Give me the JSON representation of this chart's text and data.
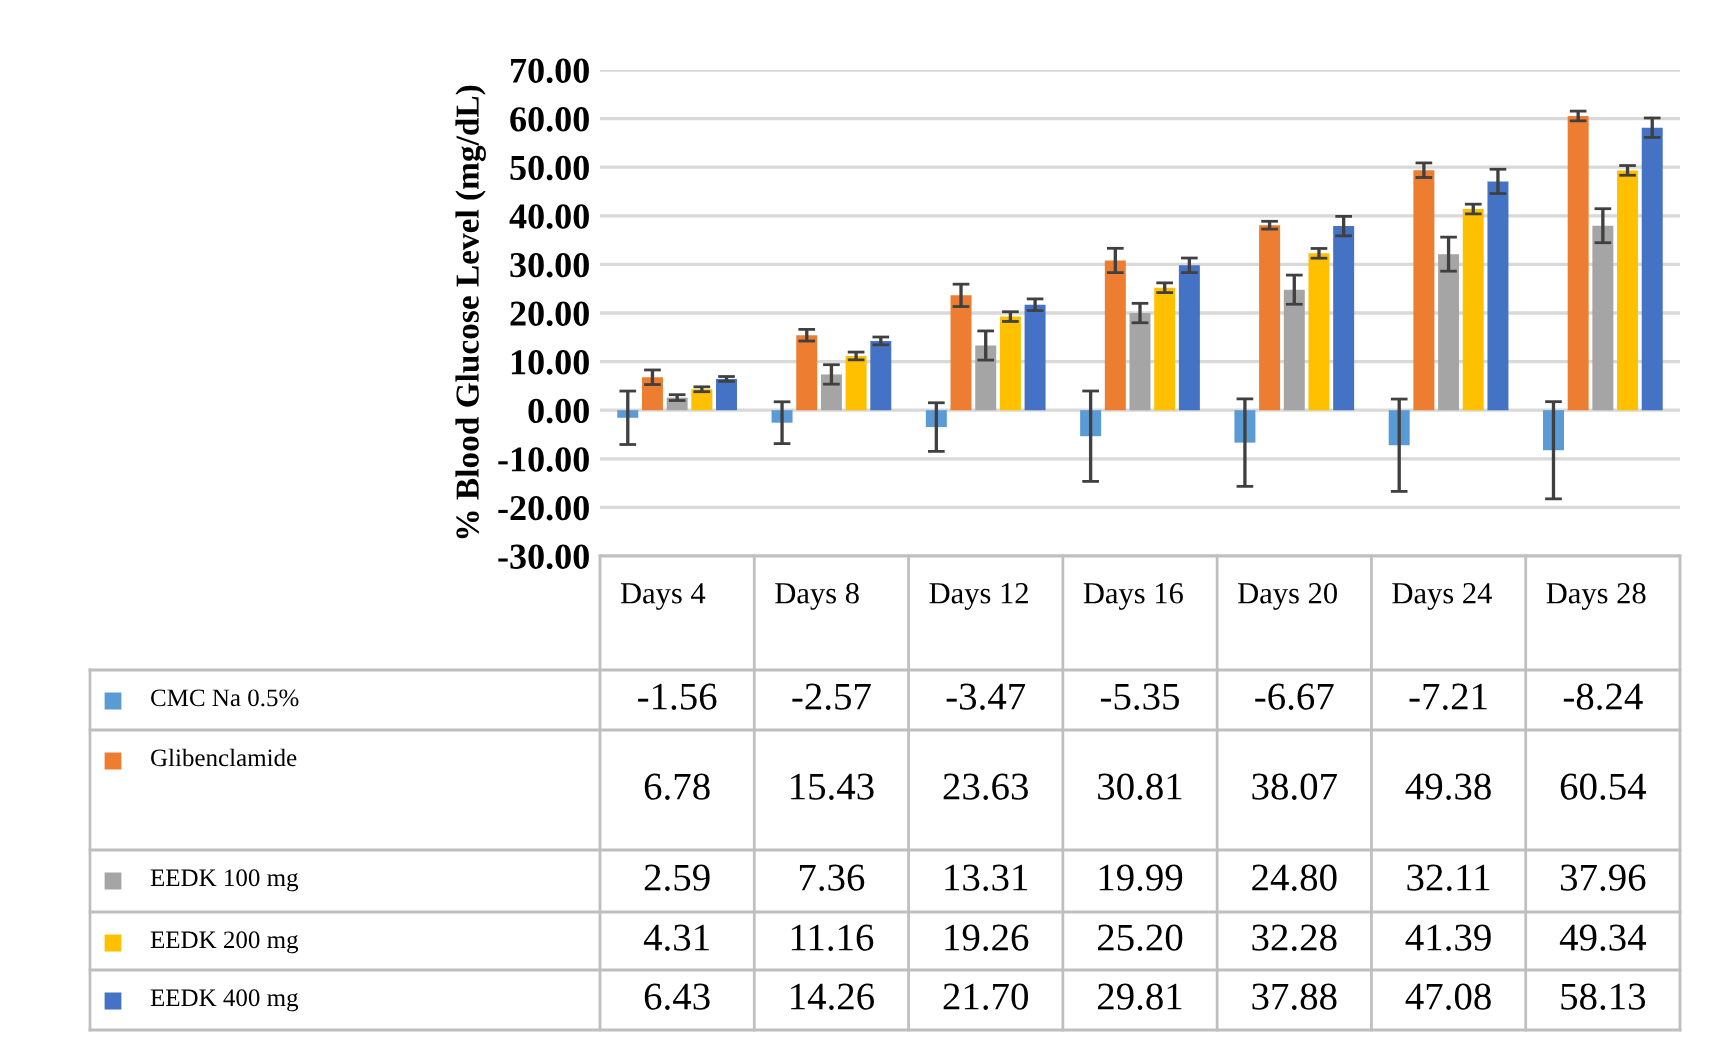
{
  "chart_data": {
    "type": "bar",
    "ylabel": "% Blood Glucose Level (mg/dL)",
    "categories": [
      "Days 4",
      "Days 8",
      "Days 12",
      "Days 16",
      "Days 20",
      "Days 24",
      "Days 28"
    ],
    "ylim": [
      -30,
      70
    ],
    "yticks": [
      {
        "value": -30,
        "label": "-30.00"
      },
      {
        "value": -20,
        "label": "-20.00"
      },
      {
        "value": -10,
        "label": "-10.00"
      },
      {
        "value": 0,
        "label": "0.00"
      },
      {
        "value": 10,
        "label": "10.00"
      },
      {
        "value": 20,
        "label": "20.00"
      },
      {
        "value": 30,
        "label": "30.00"
      },
      {
        "value": 40,
        "label": "40.00"
      },
      {
        "value": 50,
        "label": "50.00"
      },
      {
        "value": 60,
        "label": "60.00"
      },
      {
        "value": 70,
        "label": "70.00"
      }
    ],
    "grid": "y",
    "legend": "bottom left",
    "series": [
      {
        "name": "CMC Na 0.5%",
        "color": "#5b9bd5",
        "values": [
          -1.56,
          -2.57,
          -3.47,
          -5.35,
          -6.67,
          -7.21,
          -8.24
        ],
        "value_labels": [
          "-1.56",
          "-2.57",
          "-3.47",
          "-5.35",
          "-6.67",
          "-7.21",
          "-8.24"
        ],
        "errors": [
          5.5,
          4.3,
          5,
          9.3,
          9,
          9.5,
          10
        ]
      },
      {
        "name": "Glibenclamide",
        "color": "#ed7d31",
        "values": [
          6.78,
          15.43,
          23.63,
          30.81,
          38.07,
          49.38,
          60.54
        ],
        "value_labels": [
          "6.78",
          "15.43",
          "23.63",
          "30.81",
          "38.07",
          "49.38",
          "60.54"
        ],
        "errors": [
          1.5,
          1.2,
          2.3,
          2.5,
          0.8,
          1.5,
          1
        ]
      },
      {
        "name": "EEDK 100 mg",
        "color": "#a5a5a5",
        "values": [
          2.59,
          7.36,
          13.31,
          19.99,
          24.8,
          32.11,
          37.96
        ],
        "value_labels": [
          "2.59",
          "7.36",
          "13.31",
          "19.99",
          "24.80",
          "32.11",
          "37.96"
        ],
        "errors": [
          0.6,
          2,
          3,
          2,
          3,
          3.5,
          3.5
        ]
      },
      {
        "name": "EEDK 200 mg",
        "color": "#ffc000",
        "values": [
          4.31,
          11.16,
          19.26,
          25.2,
          32.28,
          41.39,
          49.34
        ],
        "value_labels": [
          "4.31",
          "11.16",
          "19.26",
          "25.20",
          "32.28",
          "41.39",
          "49.34"
        ],
        "errors": [
          0.5,
          0.8,
          1,
          1,
          1,
          1,
          1
        ]
      },
      {
        "name": "EEDK 400 mg",
        "color": "#4472c4",
        "values": [
          6.43,
          14.26,
          21.7,
          29.81,
          37.88,
          47.08,
          58.13
        ],
        "value_labels": [
          "6.43",
          "14.26",
          "21.70",
          "29.81",
          "37.88",
          "47.08",
          "58.13"
        ],
        "errors": [
          0.5,
          0.8,
          1.2,
          1.5,
          2,
          2.5,
          2
        ]
      }
    ]
  }
}
